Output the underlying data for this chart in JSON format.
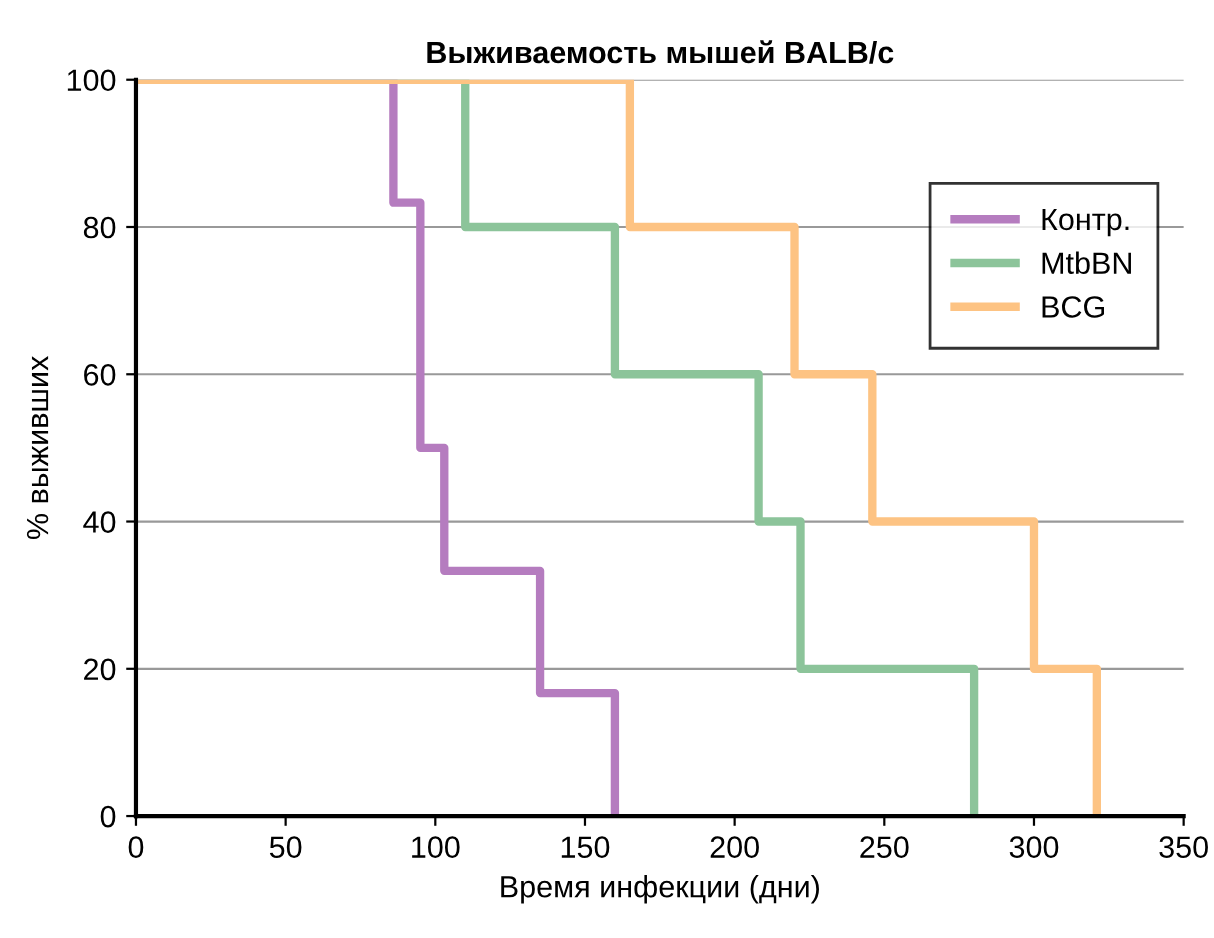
{
  "chart_data": {
    "type": "step",
    "title": "Выживаемость мышей BALB/c",
    "xlabel": "Время инфекции (дни)",
    "ylabel": "% выживших",
    "xlim": [
      0,
      350
    ],
    "xticks": [
      0,
      50,
      100,
      150,
      200,
      250,
      300,
      350
    ],
    "ylim": [
      0,
      100
    ],
    "yticks": [
      0,
      20,
      40,
      60,
      80,
      100
    ],
    "grid": "y",
    "legend": "top right",
    "series": [
      {
        "name": "Контр.",
        "color": "#b57cbf",
        "x": [
          0,
          86,
          95,
          103,
          135,
          160
        ],
        "values": [
          100,
          83.3,
          50,
          33.3,
          16.7,
          0
        ]
      },
      {
        "name": "MtbBN",
        "color": "#8cc49a",
        "x": [
          0,
          110,
          160,
          208,
          222,
          280
        ],
        "values": [
          100,
          80,
          60,
          40,
          20,
          0
        ]
      },
      {
        "name": "BCG",
        "color": "#fdc383",
        "x": [
          0,
          165,
          220,
          246,
          300,
          321
        ],
        "values": [
          100,
          80,
          60,
          40,
          20,
          0
        ]
      }
    ]
  }
}
